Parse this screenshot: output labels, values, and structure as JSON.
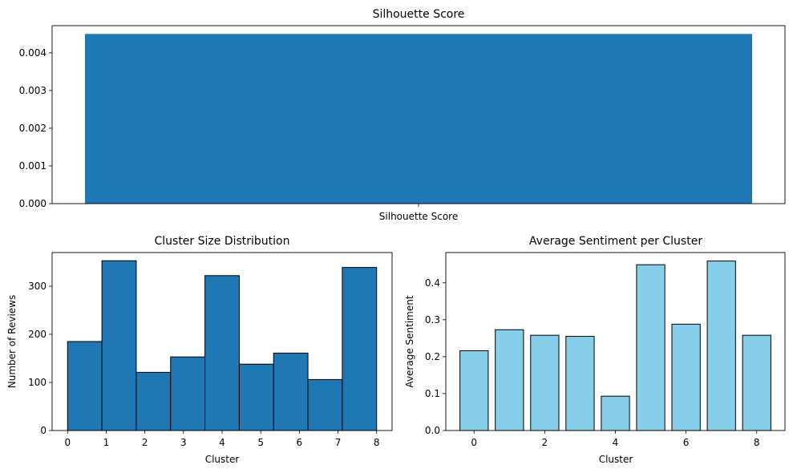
{
  "chart_data": [
    {
      "type": "bar",
      "title": "Silhouette Score",
      "xlabel": "",
      "ylabel": "",
      "categories": [
        "Silhouette Score"
      ],
      "values": [
        0.0045
      ],
      "ylim": [
        0,
        0.00472
      ],
      "yticks": [
        "0.000",
        "0.001",
        "0.002",
        "0.003",
        "0.004"
      ],
      "ytick_values": [
        0,
        0.001,
        0.002,
        0.003,
        0.004
      ],
      "color": "#1f77b4",
      "edgecolor": "none",
      "grid": false
    },
    {
      "type": "bar",
      "subtype": "histogram",
      "title": "Cluster Size Distribution",
      "xlabel": "Cluster",
      "ylabel": "Number of Reviews",
      "bin_range": [
        0,
        8
      ],
      "values": [
        185,
        353,
        121,
        153,
        322,
        138,
        161,
        106,
        339
      ],
      "xlim": [
        -0.4,
        8.4
      ],
      "ylim": [
        0,
        370
      ],
      "xticks": [
        "0",
        "1",
        "2",
        "3",
        "4",
        "5",
        "6",
        "7",
        "8"
      ],
      "xtick_values": [
        0,
        1,
        2,
        3,
        4,
        5,
        6,
        7,
        8
      ],
      "yticks": [
        "0",
        "100",
        "200",
        "300"
      ],
      "ytick_values": [
        0,
        100,
        200,
        300
      ],
      "color": "#1f77b4",
      "edgecolor": "#000000",
      "grid": false
    },
    {
      "type": "bar",
      "title": "Average Sentiment per Cluster",
      "xlabel": "Cluster",
      "ylabel": "Average Sentiment",
      "x": [
        0,
        1,
        2,
        3,
        4,
        5,
        6,
        7,
        8
      ],
      "values": [
        0.216,
        0.273,
        0.258,
        0.255,
        0.093,
        0.449,
        0.288,
        0.459,
        0.258
      ],
      "xlim": [
        -0.8,
        8.8
      ],
      "ylim": [
        0,
        0.482
      ],
      "xticks": [
        "0",
        "2",
        "4",
        "6",
        "8"
      ],
      "xtick_values": [
        0,
        2,
        4,
        6,
        8
      ],
      "yticks": [
        "0.0",
        "0.1",
        "0.2",
        "0.3",
        "0.4"
      ],
      "ytick_values": [
        0,
        0.1,
        0.2,
        0.3,
        0.4
      ],
      "color": "#87ceeb",
      "edgecolor": "#000000",
      "grid": false
    }
  ]
}
